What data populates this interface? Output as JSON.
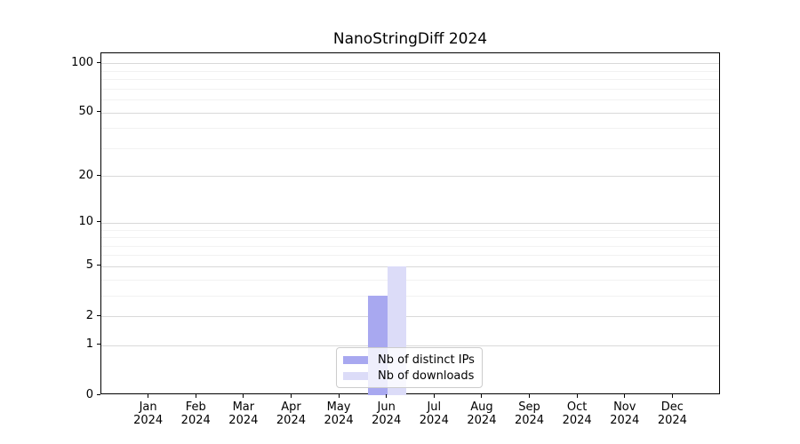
{
  "title": "NanoStringDiff 2024",
  "chart_data": {
    "type": "bar",
    "title": "NanoStringDiff 2024",
    "categories": [
      "Jan",
      "Feb",
      "Mar",
      "Apr",
      "May",
      "Jun",
      "Jul",
      "Aug",
      "Sep",
      "Oct",
      "Nov",
      "Dec"
    ],
    "year_label": "2024",
    "series": [
      {
        "name": "Nb of distinct IPs",
        "color": "#a8a8f0",
        "values": [
          0,
          0,
          0,
          0,
          0,
          3,
          0,
          0,
          0,
          0,
          0,
          0
        ]
      },
      {
        "name": "Nb of downloads",
        "color": "#dcdcf8",
        "values": [
          0,
          0,
          0,
          0,
          0,
          5,
          0,
          0,
          0,
          0,
          0,
          0
        ]
      }
    ],
    "y_axis": {
      "scale": "log1p",
      "tick_values": [
        0,
        1,
        2,
        5,
        10,
        20,
        50,
        100
      ],
      "tick_labels": [
        "0",
        "1",
        "2",
        "5",
        "10",
        "20",
        "50",
        "100"
      ],
      "minor_gridline_values": [
        3,
        4,
        6,
        7,
        8,
        9,
        30,
        40,
        60,
        70,
        80,
        90
      ],
      "ylim": [
        0,
        115
      ]
    },
    "legend": {
      "position": "lower center"
    },
    "grid": "on",
    "colors": {
      "major_grid": "#d9d9d9",
      "minor_grid": "#f2f2f2",
      "axis": "#000000",
      "background": "#ffffff"
    }
  }
}
